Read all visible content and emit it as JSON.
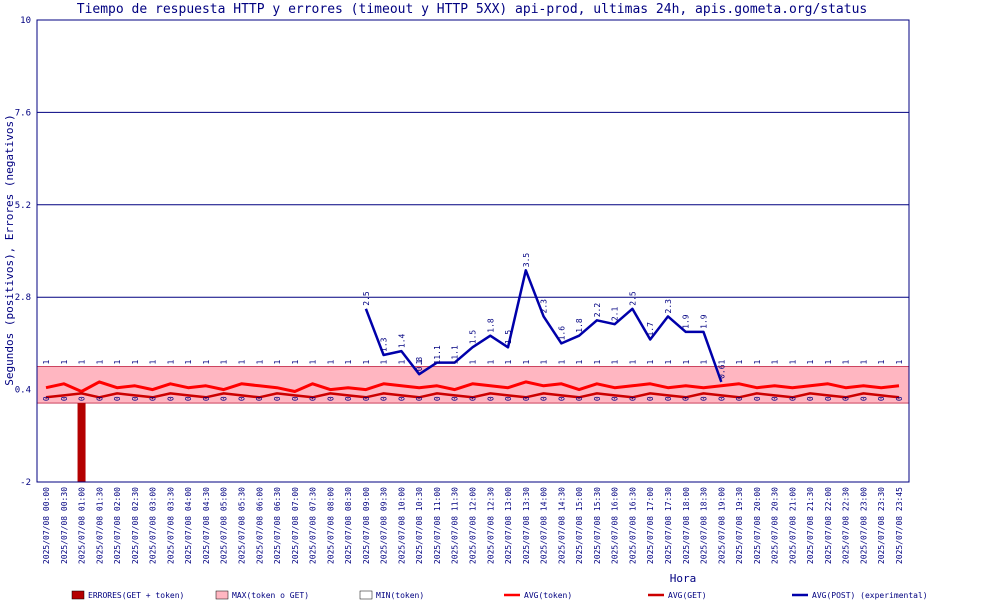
{
  "chart_data": {
    "type": "line",
    "title": "Tiempo de respuesta HTTP y errores (timeout y HTTP 5XX) api-prod, ultimas 24h, apis.gometa.org/status",
    "xlabel": "Hora",
    "ylabel": "Segundos (positivos), Errores (negativos)",
    "ylim": [
      -2,
      10
    ],
    "yticks": [
      -2,
      0.4,
      2.8,
      5.2,
      7.6,
      10
    ],
    "ytick_labels": [
      "-2",
      "0.4",
      "2.8",
      "5.2",
      "7.6",
      "10"
    ],
    "grid": true,
    "legend_position": "bottom",
    "x": [
      "2025/07/08 00:00",
      "2025/07/08 00:30",
      "2025/07/08 01:00",
      "2025/07/08 01:30",
      "2025/07/08 02:00",
      "2025/07/08 02:30",
      "2025/07/08 03:00",
      "2025/07/08 03:30",
      "2025/07/08 04:00",
      "2025/07/08 04:30",
      "2025/07/08 05:00",
      "2025/07/08 05:30",
      "2025/07/08 06:00",
      "2025/07/08 06:30",
      "2025/07/08 07:00",
      "2025/07/08 07:30",
      "2025/07/08 08:00",
      "2025/07/08 08:30",
      "2025/07/08 09:00",
      "2025/07/08 09:30",
      "2025/07/08 10:00",
      "2025/07/08 10:30",
      "2025/07/08 11:00",
      "2025/07/08 11:30",
      "2025/07/08 12:00",
      "2025/07/08 12:30",
      "2025/07/08 13:00",
      "2025/07/08 13:30",
      "2025/07/08 14:00",
      "2025/07/08 14:30",
      "2025/07/08 15:00",
      "2025/07/08 15:30",
      "2025/07/08 16:00",
      "2025/07/08 16:30",
      "2025/07/08 17:00",
      "2025/07/08 17:30",
      "2025/07/08 18:00",
      "2025/07/08 18:30",
      "2025/07/08 19:00",
      "2025/07/08 19:30",
      "2025/07/08 20:00",
      "2025/07/08 20:30",
      "2025/07/08 21:00",
      "2025/07/08 21:30",
      "2025/07/08 22:00",
      "2025/07/08 22:30",
      "2025/07/08 23:00",
      "2025/07/08 23:30",
      "2025/07/08 23:45"
    ],
    "max_band": {
      "name": "MAX(token o GET)",
      "color": "#ffb6c1",
      "upper": 1.0,
      "lower": 0.05,
      "label": "1"
    },
    "errors": {
      "name": "ERRORES(GET + token)",
      "color": "#b40000",
      "points": [
        {
          "x": "2025/07/08 01:00",
          "value": -2
        }
      ]
    },
    "min_token": {
      "name": "MIN(token)",
      "label": "0"
    },
    "series": [
      {
        "name": "AVG(token)",
        "color": "#ff0000",
        "values": [
          0.45,
          0.55,
          0.35,
          0.6,
          0.45,
          0.5,
          0.4,
          0.55,
          0.45,
          0.5,
          0.4,
          0.55,
          0.5,
          0.45,
          0.35,
          0.55,
          0.4,
          0.45,
          0.4,
          0.55,
          0.5,
          0.45,
          0.5,
          0.4,
          0.55,
          0.5,
          0.45,
          0.6,
          0.5,
          0.55,
          0.4,
          0.55,
          0.45,
          0.5,
          0.55,
          0.45,
          0.5,
          0.45,
          0.5,
          0.55,
          0.45,
          0.5,
          0.45,
          0.5,
          0.55,
          0.45,
          0.5,
          0.45,
          0.5
        ]
      },
      {
        "name": "AVG(GET)",
        "color": "#cc0000",
        "values": [
          0.2,
          0.25,
          0.3,
          0.2,
          0.3,
          0.25,
          0.2,
          0.3,
          0.25,
          0.2,
          0.3,
          0.25,
          0.2,
          0.3,
          0.25,
          0.2,
          0.3,
          0.25,
          0.2,
          0.3,
          0.25,
          0.2,
          0.3,
          0.25,
          0.2,
          0.3,
          0.25,
          0.2,
          0.3,
          0.25,
          0.2,
          0.3,
          0.25,
          0.2,
          0.3,
          0.25,
          0.2,
          0.3,
          0.25,
          0.2,
          0.3,
          0.25,
          0.2,
          0.3,
          0.25,
          0.2,
          0.3,
          0.25,
          0.2
        ]
      },
      {
        "name": "AVG(POST) (experimental)",
        "color": "#0000aa",
        "x": [
          "2025/07/08 09:00",
          "2025/07/08 09:30",
          "2025/07/08 10:00",
          "2025/07/08 10:30",
          "2025/07/08 11:00",
          "2025/07/08 11:30",
          "2025/07/08 12:00",
          "2025/07/08 12:30",
          "2025/07/08 13:00",
          "2025/07/08 13:30",
          "2025/07/08 14:00",
          "2025/07/08 14:30",
          "2025/07/08 15:00",
          "2025/07/08 15:30",
          "2025/07/08 16:00",
          "2025/07/08 16:30",
          "2025/07/08 17:00",
          "2025/07/08 17:30",
          "2025/07/08 18:00",
          "2025/07/08 18:30",
          "2025/07/08 19:00"
        ],
        "values": [
          2.5,
          1.3,
          1.4,
          0.8,
          1.1,
          1.1,
          1.5,
          1.8,
          1.5,
          3.5,
          2.3,
          1.6,
          1.8,
          2.2,
          2.1,
          2.5,
          1.7,
          2.3,
          1.9,
          1.9,
          0.6
        ],
        "labels": [
          "2.5",
          "1.3",
          "1.4",
          "0.8",
          "1.1",
          "1.1",
          "1.5",
          "1.8",
          "1.5",
          "3.5",
          "2.3",
          "1.6",
          "1.8",
          "2.2",
          "2.1",
          "2.5",
          "1.7",
          "2.3",
          "1.9",
          "1.9",
          "0.6"
        ]
      }
    ]
  }
}
